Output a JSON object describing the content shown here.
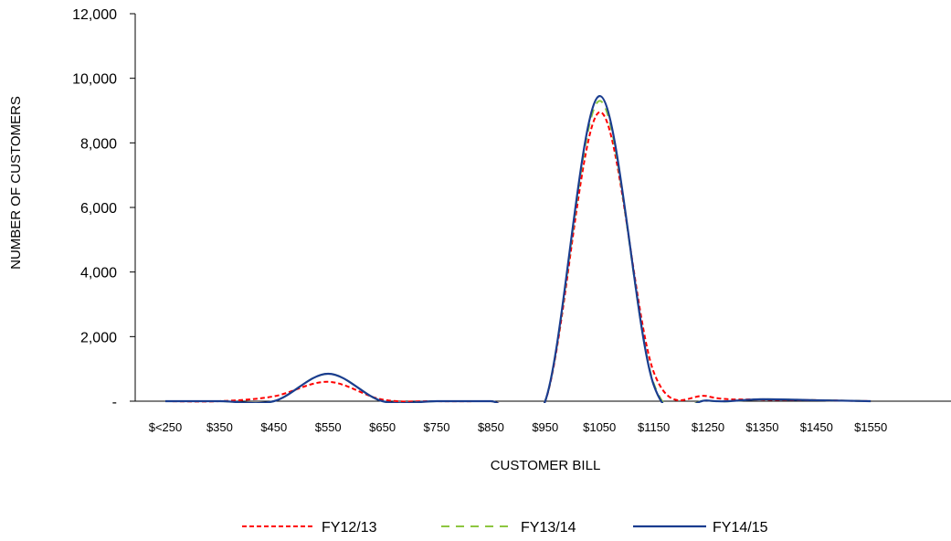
{
  "chart_data": {
    "type": "line",
    "xlabel": "CUSTOMER BILL",
    "ylabel": "NUMBER OF CUSTOMERS",
    "categories": [
      "$<250",
      "$350",
      "$450",
      "$550",
      "$650",
      "$750",
      "$850",
      "$950",
      "$1050",
      "$1150",
      "$1250",
      "$1350",
      "$1450",
      "$1550"
    ],
    "ylim": [
      0,
      12000
    ],
    "yticks": [
      0,
      2000,
      4000,
      6000,
      8000,
      10000,
      12000
    ],
    "ytick_labels": [
      "-",
      "2,000",
      "4,000",
      "6,000",
      "8,000",
      "10,000",
      "12,000"
    ],
    "grid": false,
    "legend_position": "bottom",
    "series": [
      {
        "name": "FY12/13",
        "color": "#ff0000",
        "style": "dashed",
        "values": [
          0,
          0,
          150,
          600,
          50,
          0,
          0,
          0,
          8950,
          900,
          150,
          50,
          30,
          0
        ]
      },
      {
        "name": "FY13/14",
        "color": "#8dc63f",
        "style": "dashed",
        "values": [
          0,
          0,
          0,
          850,
          0,
          0,
          0,
          0,
          9300,
          550,
          20,
          60,
          30,
          0
        ]
      },
      {
        "name": "FY14/15",
        "color": "#1a3d8f",
        "style": "solid",
        "values": [
          0,
          0,
          0,
          850,
          0,
          0,
          0,
          0,
          9450,
          500,
          20,
          60,
          30,
          0
        ]
      }
    ]
  }
}
